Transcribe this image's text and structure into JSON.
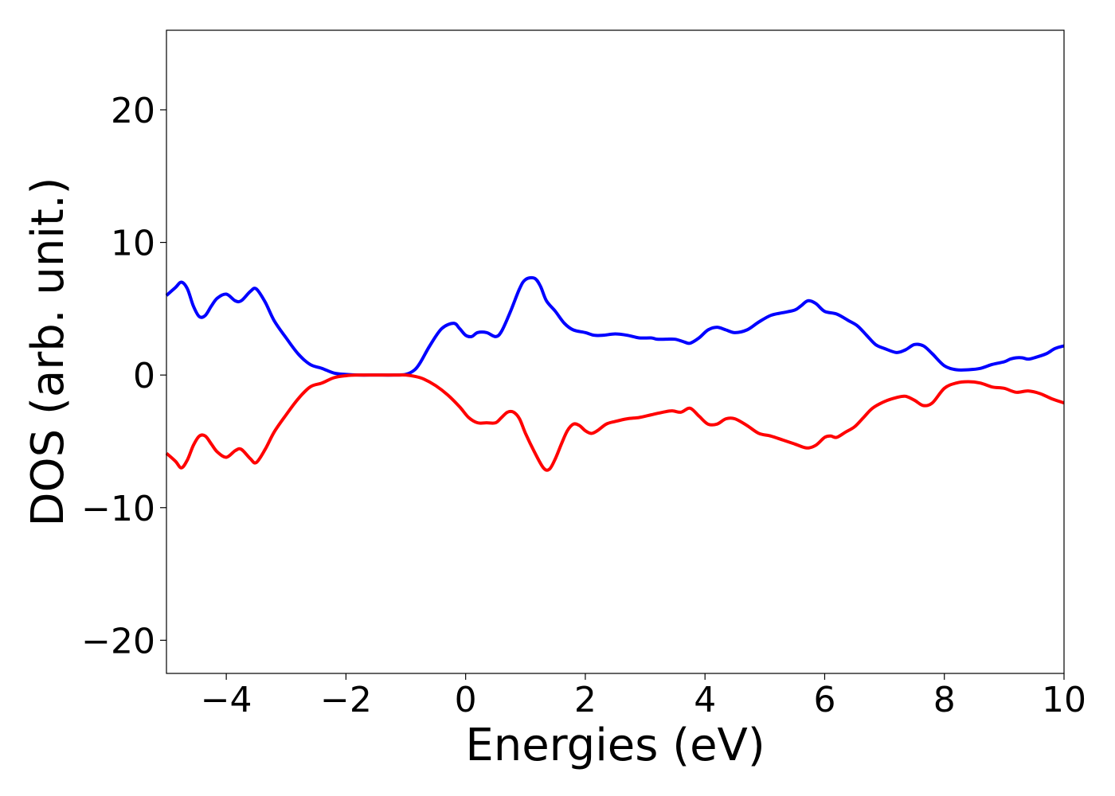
{
  "chart_data": {
    "type": "line",
    "title": "",
    "xlabel": "Energies (eV)",
    "ylabel": "DOS (arb. unit.)",
    "xlim": [
      -5,
      10
    ],
    "ylim": [
      -22.5,
      26
    ],
    "xticks": [
      -4,
      -2,
      0,
      2,
      4,
      6,
      8,
      10
    ],
    "xtick_labels": [
      "−4",
      "−2",
      "0",
      "2",
      "4",
      "6",
      "8",
      "10"
    ],
    "yticks": [
      -20,
      -10,
      0,
      10,
      20
    ],
    "ytick_labels": [
      "−20",
      "−10",
      "0",
      "10",
      "20"
    ],
    "grid": false,
    "legend": "none",
    "series": [
      {
        "color": "#0000ff",
        "x": [
          -5.0,
          -4.85,
          -4.75,
          -4.65,
          -4.55,
          -4.45,
          -4.35,
          -4.25,
          -4.15,
          -4.0,
          -3.85,
          -3.75,
          -3.6,
          -3.5,
          -3.35,
          -3.2,
          -3.0,
          -2.8,
          -2.6,
          -2.4,
          -2.2,
          -2.0,
          -1.8,
          -1.5,
          -1.2,
          -1.0,
          -0.85,
          -0.75,
          -0.6,
          -0.4,
          -0.2,
          -0.1,
          0.0,
          0.1,
          0.2,
          0.35,
          0.5,
          0.6,
          0.75,
          0.9,
          1.0,
          1.15,
          1.25,
          1.35,
          1.5,
          1.65,
          1.8,
          2.0,
          2.15,
          2.3,
          2.5,
          2.7,
          2.9,
          3.1,
          3.2,
          3.35,
          3.5,
          3.65,
          3.75,
          3.9,
          4.05,
          4.2,
          4.35,
          4.5,
          4.7,
          4.9,
          5.1,
          5.3,
          5.5,
          5.6,
          5.72,
          5.85,
          6.0,
          6.2,
          6.4,
          6.55,
          6.7,
          6.85,
          7.0,
          7.2,
          7.35,
          7.5,
          7.65,
          7.8,
          8.0,
          8.2,
          8.4,
          8.6,
          8.8,
          9.0,
          9.1,
          9.2,
          9.3,
          9.4,
          9.5,
          9.7,
          9.85,
          10.0
        ],
        "y": [
          6.0,
          6.6,
          7.0,
          6.5,
          5.2,
          4.4,
          4.5,
          5.2,
          5.8,
          6.1,
          5.6,
          5.6,
          6.3,
          6.5,
          5.5,
          4.1,
          2.8,
          1.6,
          0.8,
          0.5,
          0.15,
          0.05,
          0.0,
          0.0,
          0.0,
          0.05,
          0.4,
          1.0,
          2.2,
          3.5,
          3.9,
          3.5,
          3.0,
          2.9,
          3.2,
          3.2,
          2.9,
          3.3,
          4.8,
          6.5,
          7.2,
          7.3,
          6.7,
          5.6,
          4.8,
          3.9,
          3.4,
          3.2,
          3.0,
          3.0,
          3.1,
          3.0,
          2.8,
          2.8,
          2.7,
          2.7,
          2.7,
          2.5,
          2.4,
          2.8,
          3.4,
          3.6,
          3.4,
          3.2,
          3.4,
          4.0,
          4.5,
          4.7,
          4.9,
          5.2,
          5.6,
          5.4,
          4.8,
          4.6,
          4.1,
          3.7,
          3.0,
          2.3,
          2.0,
          1.7,
          1.9,
          2.3,
          2.2,
          1.6,
          0.7,
          0.4,
          0.4,
          0.5,
          0.8,
          1.0,
          1.2,
          1.3,
          1.3,
          1.2,
          1.3,
          1.6,
          2.0,
          2.2
        ]
      },
      {
        "color": "#ff0000",
        "x": [
          -5.0,
          -4.85,
          -4.75,
          -4.65,
          -4.55,
          -4.45,
          -4.35,
          -4.25,
          -4.15,
          -4.0,
          -3.85,
          -3.75,
          -3.6,
          -3.5,
          -3.35,
          -3.2,
          -3.0,
          -2.8,
          -2.6,
          -2.4,
          -2.2,
          -2.0,
          -1.8,
          -1.5,
          -1.2,
          -1.0,
          -0.85,
          -0.7,
          -0.5,
          -0.3,
          -0.1,
          0.05,
          0.2,
          0.35,
          0.5,
          0.6,
          0.7,
          0.8,
          0.9,
          1.0,
          1.15,
          1.3,
          1.4,
          1.5,
          1.6,
          1.7,
          1.8,
          1.9,
          2.0,
          2.1,
          2.2,
          2.35,
          2.5,
          2.7,
          2.9,
          3.1,
          3.3,
          3.45,
          3.6,
          3.75,
          3.9,
          4.05,
          4.2,
          4.35,
          4.5,
          4.7,
          4.9,
          5.1,
          5.3,
          5.5,
          5.7,
          5.85,
          6.0,
          6.1,
          6.2,
          6.35,
          6.5,
          6.65,
          6.8,
          7.0,
          7.2,
          7.35,
          7.5,
          7.65,
          7.8,
          8.0,
          8.2,
          8.4,
          8.6,
          8.8,
          9.0,
          9.2,
          9.4,
          9.6,
          9.8,
          10.0
        ],
        "y": [
          -5.9,
          -6.5,
          -7.0,
          -6.4,
          -5.3,
          -4.6,
          -4.6,
          -5.2,
          -5.8,
          -6.2,
          -5.7,
          -5.6,
          -6.3,
          -6.6,
          -5.6,
          -4.3,
          -3.0,
          -1.8,
          -0.9,
          -0.6,
          -0.2,
          -0.05,
          0.0,
          0.0,
          0.0,
          0.0,
          -0.1,
          -0.3,
          -0.8,
          -1.5,
          -2.4,
          -3.2,
          -3.6,
          -3.6,
          -3.6,
          -3.2,
          -2.8,
          -2.8,
          -3.3,
          -4.4,
          -5.8,
          -7.0,
          -7.1,
          -6.3,
          -5.2,
          -4.2,
          -3.7,
          -3.8,
          -4.2,
          -4.4,
          -4.2,
          -3.7,
          -3.5,
          -3.3,
          -3.2,
          -3.0,
          -2.8,
          -2.7,
          -2.8,
          -2.5,
          -3.1,
          -3.7,
          -3.7,
          -3.3,
          -3.3,
          -3.8,
          -4.4,
          -4.6,
          -4.9,
          -5.2,
          -5.5,
          -5.3,
          -4.7,
          -4.6,
          -4.7,
          -4.3,
          -3.9,
          -3.2,
          -2.5,
          -2.0,
          -1.7,
          -1.6,
          -1.9,
          -2.3,
          -2.1,
          -1.0,
          -0.6,
          -0.5,
          -0.6,
          -0.9,
          -1.0,
          -1.3,
          -1.2,
          -1.4,
          -1.8,
          -2.1
        ]
      }
    ]
  }
}
